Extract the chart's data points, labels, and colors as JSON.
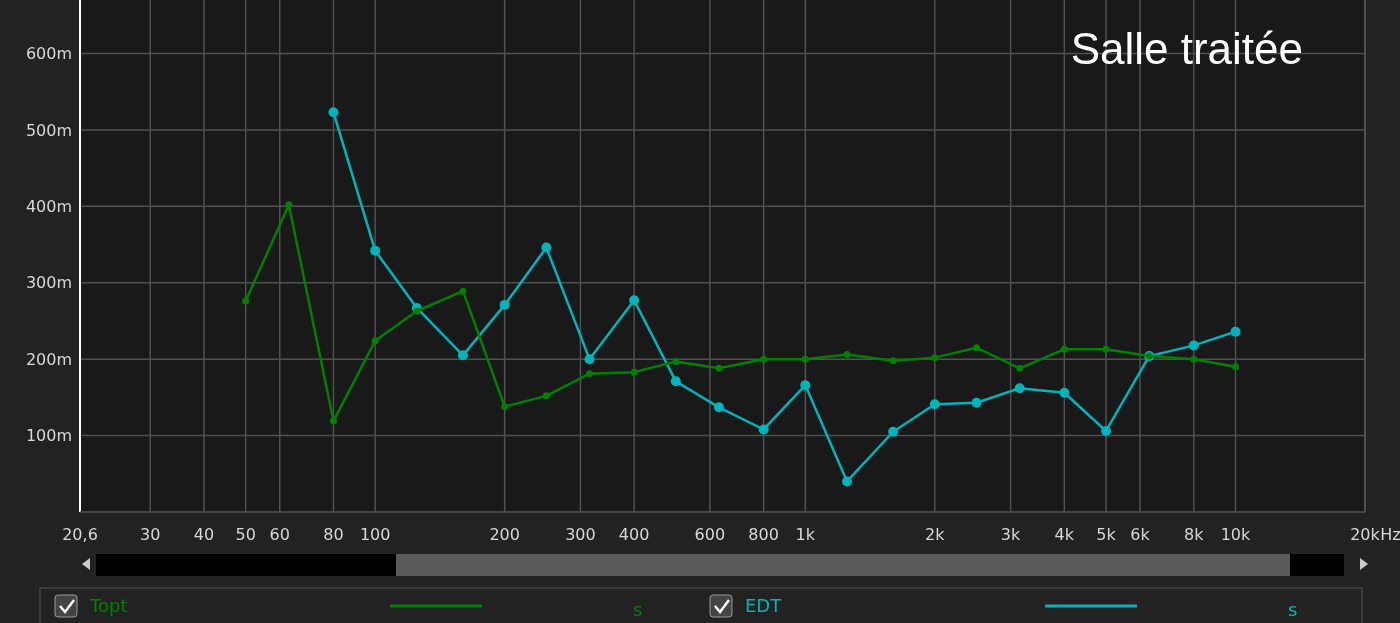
{
  "chart_data": {
    "type": "line",
    "title": "Salle traitée",
    "x": [
      50,
      63,
      80,
      100,
      125,
      160,
      200,
      250,
      315,
      400,
      500,
      630,
      800,
      1000,
      1250,
      1600,
      2000,
      2500,
      3150,
      4000,
      5000,
      6300,
      8000,
      10000
    ],
    "series": [
      {
        "name": "Topt",
        "color": "#008000",
        "values": [
          276,
          402,
          119,
          224,
          263,
          289,
          138,
          152,
          181,
          183,
          197,
          188,
          200,
          200,
          206,
          198,
          202,
          215,
          188,
          213,
          213,
          204,
          200,
          190
        ]
      },
      {
        "name": "EDT",
        "color": "#00b4bc",
        "values": [
          null,
          null,
          523,
          342,
          267,
          205,
          271,
          346,
          200,
          277,
          171,
          137,
          108,
          166,
          40,
          105,
          141,
          143,
          162,
          156,
          106,
          204,
          218,
          236
        ]
      }
    ],
    "log": "x",
    "xlim": [
      20.6,
      20000
    ],
    "xticks": [
      {
        "value": 20.6,
        "label": "20,6"
      },
      30,
      40,
      50,
      60,
      80,
      100,
      200,
      300,
      400,
      600,
      800,
      {
        "value": 1000,
        "label": "1k"
      },
      {
        "value": 2000,
        "label": "2k"
      },
      {
        "value": 3000,
        "label": "3k"
      },
      {
        "value": 4000,
        "label": "4k"
      },
      {
        "value": 5000,
        "label": "5k"
      },
      {
        "value": 6000,
        "label": "6k"
      },
      {
        "value": 8000,
        "label": "8k"
      },
      {
        "value": 10000,
        "label": "10k"
      },
      {
        "value": 20000,
        "label": "20k"
      }
    ],
    "xlabel": "Hz",
    "ylim": [
      0,
      670
    ],
    "yticks": [
      {
        "value": 100,
        "label": "100m"
      },
      {
        "value": 200,
        "label": "200m"
      },
      {
        "value": 300,
        "label": "300m"
      },
      {
        "value": 400,
        "label": "400m"
      },
      {
        "value": 500,
        "label": "500m"
      },
      {
        "value": 600,
        "label": "600m"
      }
    ],
    "grid": true,
    "legend": "bottom",
    "marker": "circle",
    "line_style": "solid",
    "annotations": [
      "s",
      "s"
    ]
  }
}
